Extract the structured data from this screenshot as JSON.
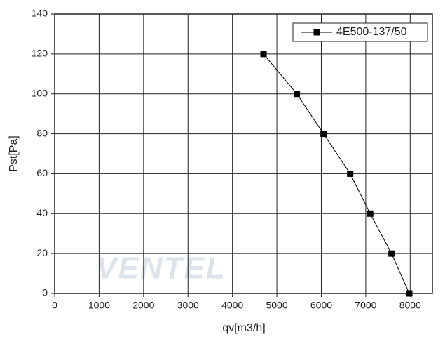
{
  "chart_data": {
    "type": "line",
    "x_label": "qv[m3/h]",
    "y_label": "Pst[Pa]",
    "watermark": "VENTEL",
    "x": [
      4700,
      5450,
      6050,
      6650,
      7100,
      7580,
      7980
    ],
    "series": [
      {
        "name": "4E500-137/50",
        "color": "#000000",
        "values": [
          120,
          100,
          80,
          60,
          40,
          20,
          0
        ]
      }
    ],
    "xlim": [
      0,
      8500
    ],
    "xticks": [
      0,
      1000,
      2000,
      3000,
      4000,
      5000,
      6000,
      7000,
      8000
    ],
    "ylim": [
      0,
      140
    ],
    "yticks": [
      0,
      20,
      40,
      60,
      80,
      100,
      120,
      140
    ],
    "grid": true,
    "legend": "top-right"
  }
}
